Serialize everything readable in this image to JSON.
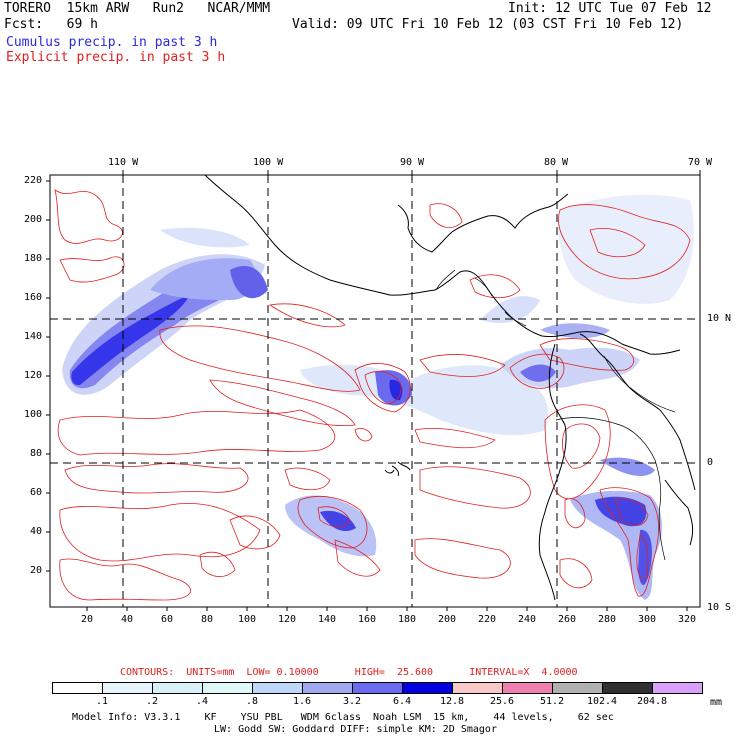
{
  "header": {
    "model": "TORERO  15km ARW   Run2   NCAR/MMM",
    "init": "Init: 12 UTC Tue 07 Feb 12",
    "fcst": "Fcst:   69 h",
    "valid": "Valid: 09 UTC Fri 10 Feb 12 (03 CST Fri 10 Feb 12)",
    "field1": "Cumulus precip. in past 3 h",
    "field2": "Explicit precip. in past 3 h"
  },
  "colors": {
    "field1": "#2a2ad8",
    "field2": "#e02020",
    "grid": "#000000",
    "coast": "#000000",
    "contour": "#e02020"
  },
  "map": {
    "top_lon_labels": [
      "110 W",
      "100 W",
      "90 W",
      "80 W",
      "70 W"
    ],
    "right_lat_labels": [
      "10 N",
      "0",
      "10 S"
    ],
    "left_y_ticks": [
      "220",
      "200",
      "180",
      "160",
      "140",
      "120",
      "100",
      "80",
      "60",
      "40",
      "20"
    ],
    "bottom_x_ticks": [
      "20",
      "40",
      "60",
      "80",
      "100",
      "120",
      "140",
      "160",
      "180",
      "200",
      "220",
      "240",
      "260",
      "280",
      "300",
      "320"
    ]
  },
  "legend": {
    "contours_line": "CONTOURS:  UNITS=mm  LOW= 0.10000      HIGH=  25.600      INTERVAL=X  4.0000",
    "labels": [
      ".1",
      ".2",
      ".4",
      ".8",
      "1.6",
      "3.2",
      "6.4",
      "12.8",
      "25.6",
      "51.2",
      "102.4",
      "204.8"
    ],
    "units": "mm",
    "colors": [
      "#ffffff",
      "#e8f4fc",
      "#d8f0f8",
      "#dff8f8",
      "#c0d8f8",
      "#a0a8f0",
      "#6b6bf0",
      "#0000e0",
      "#f8c8c8",
      "#f080b0",
      "#b0b0b0",
      "#303030",
      "#d8a0f8"
    ]
  },
  "footer": {
    "line1": "Model Info: V3.3.1    KF    YSU PBL   WDM 6class  Noah LSM  15 km,    44 levels,    62 sec",
    "line2": "LW: Godd SW: Goddard DIFF: simple KM: 2D Smagor"
  }
}
